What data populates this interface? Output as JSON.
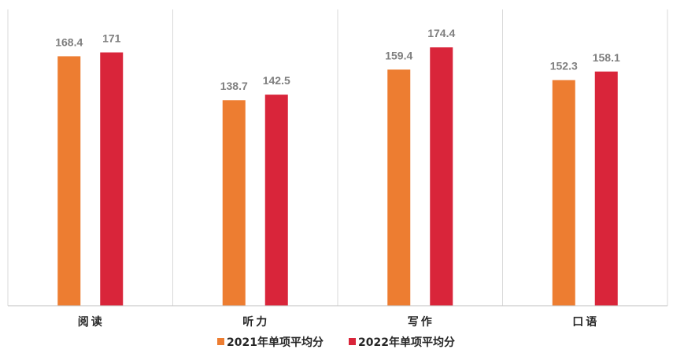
{
  "chart_data": {
    "type": "bar",
    "categories": [
      "阅读",
      "听力",
      "写作",
      "口语"
    ],
    "series": [
      {
        "name": "2021年单项平均分",
        "values": [
          168.4,
          138.7,
          159.4,
          152.3
        ],
        "color": "#ed7d31"
      },
      {
        "name": "2022年单项平均分",
        "values": [
          171,
          142.5,
          174.4,
          158.1
        ],
        "color": "#d9253a"
      }
    ],
    "value_labels": [
      [
        "168.4",
        "138.7",
        "159.4",
        "152.3"
      ],
      [
        "171",
        "142.5",
        "174.4",
        "158.1"
      ]
    ],
    "ylim": [
      0,
      200
    ],
    "grid": false,
    "category_separators": true,
    "legend": "bottom-center"
  },
  "colors": {
    "axis": "#bfbfbf",
    "separator": "#d9d9d9",
    "label": "#7f7f7f",
    "text": "#262626"
  }
}
